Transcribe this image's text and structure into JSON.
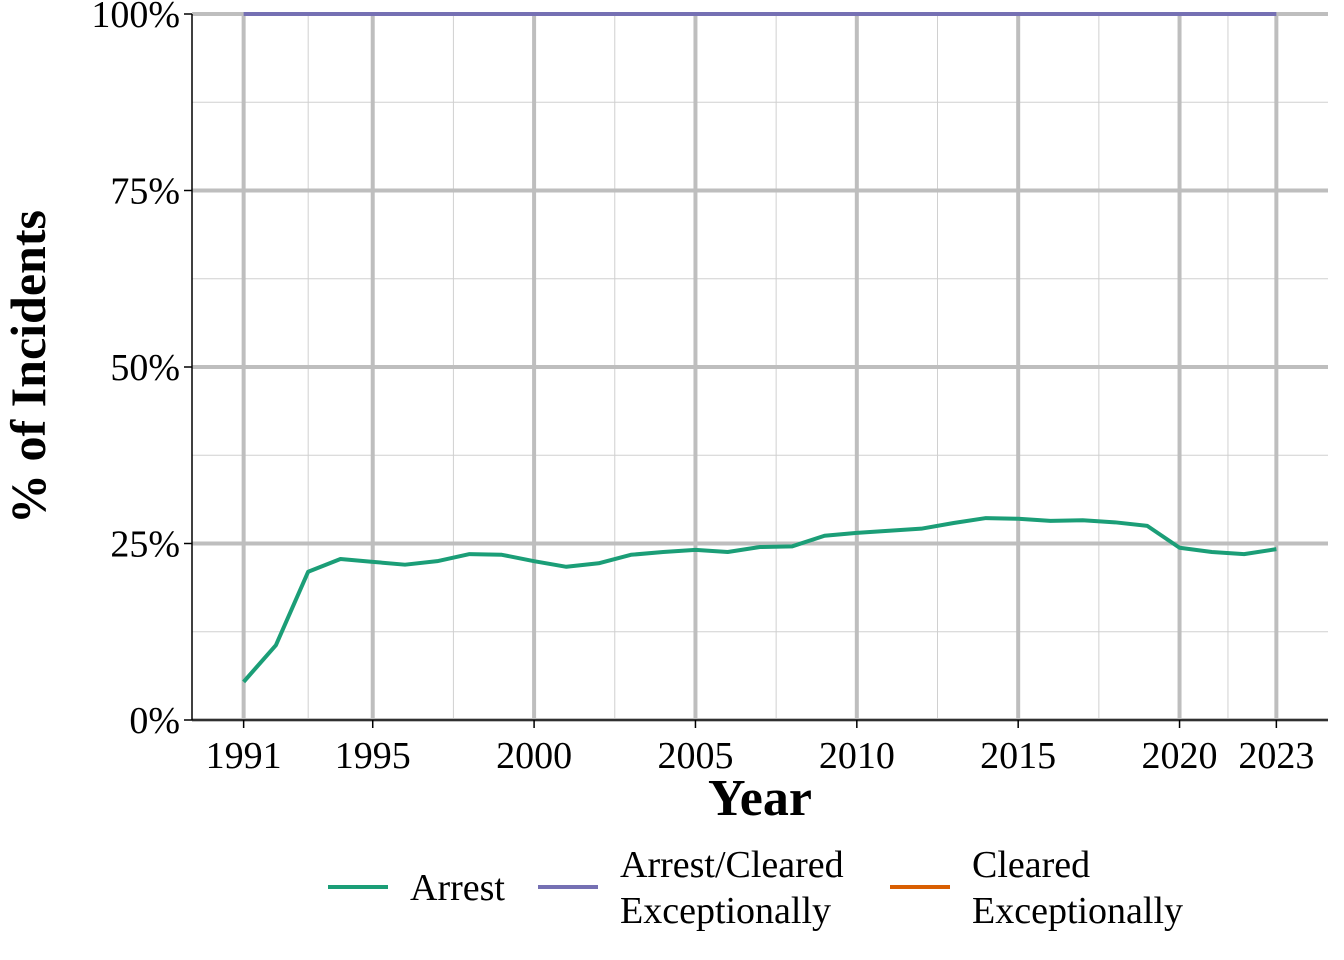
{
  "chart_data": {
    "type": "line",
    "x_label": "Year",
    "y_label": "% of Incidents",
    "x": [
      1991,
      1992,
      1993,
      1994,
      1995,
      1996,
      1997,
      1998,
      1999,
      2000,
      2001,
      2002,
      2003,
      2004,
      2005,
      2006,
      2007,
      2008,
      2009,
      2010,
      2011,
      2012,
      2013,
      2014,
      2015,
      2016,
      2017,
      2018,
      2019,
      2020,
      2021,
      2022,
      2023
    ],
    "series": [
      {
        "name": "Arrest",
        "color": "#1b9e77",
        "values": [
          5.4,
          10.6,
          21.0,
          22.8,
          22.4,
          22.0,
          22.5,
          23.5,
          23.4,
          22.5,
          21.7,
          22.2,
          23.4,
          23.8,
          24.1,
          23.8,
          24.5,
          24.6,
          26.1,
          26.5,
          26.8,
          27.1,
          27.9,
          28.6,
          28.5,
          28.2,
          28.3,
          28.0,
          27.5,
          24.4,
          23.8,
          23.5,
          24.2
        ]
      },
      {
        "name": "Arrest/Cleared\nExceptionally",
        "color": "#7570b3",
        "values": [
          100,
          100,
          100,
          100,
          100,
          100,
          100,
          100,
          100,
          100,
          100,
          100,
          100,
          100,
          100,
          100,
          100,
          100,
          100,
          100,
          100,
          100,
          100,
          100,
          100,
          100,
          100,
          100,
          100,
          100,
          100,
          100,
          100
        ]
      },
      {
        "name": "Cleared\nExceptionally",
        "color": "#d95f02",
        "values": [
          null,
          null,
          null,
          null,
          null,
          null,
          null,
          null,
          null,
          null,
          null,
          null,
          null,
          null,
          null,
          null,
          null,
          null,
          null,
          null,
          null,
          null,
          null,
          null,
          null,
          null,
          null,
          null,
          null,
          null,
          null,
          null,
          null
        ]
      }
    ],
    "xlim": [
      1989.4,
      2024.6
    ],
    "xticks": [
      1991,
      1995,
      2000,
      2005,
      2010,
      2015,
      2020,
      2023
    ],
    "ylim": [
      0,
      100
    ],
    "yticks": [
      {
        "value": 0,
        "label": "0%"
      },
      {
        "value": 25,
        "label": "25%"
      },
      {
        "value": 50,
        "label": "50%"
      },
      {
        "value": 75,
        "label": "75%"
      },
      {
        "value": 100,
        "label": "100%"
      }
    ],
    "grid": true,
    "legend": "bottom"
  }
}
